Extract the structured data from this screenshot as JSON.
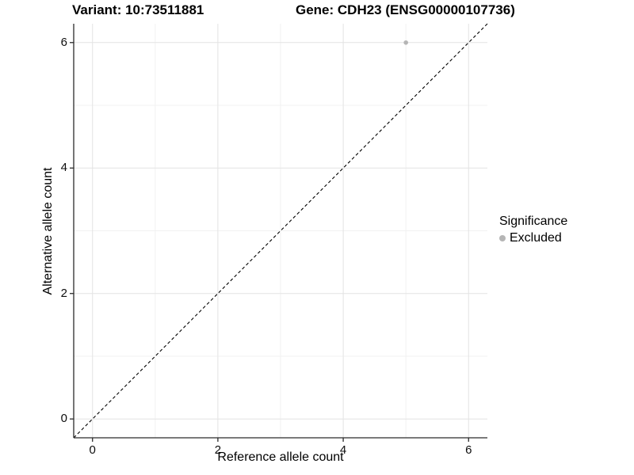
{
  "header": {
    "variant_title": "Variant: 10:73511881",
    "gene_title": "Gene: CDH23 (ENSG00000107736)"
  },
  "legend": {
    "title": "Significance",
    "items": [
      {
        "label": "Excluded",
        "color": "#b5b5b5"
      }
    ]
  },
  "chart_data": {
    "type": "scatter",
    "title_left": "Variant: 10:73511881",
    "title_right": "Gene: CDH23 (ENSG00000107736)",
    "xlabel": "Reference allele count",
    "ylabel": "Alternative allele count",
    "xlim": [
      -0.3,
      6.3
    ],
    "ylim": [
      -0.3,
      6.3
    ],
    "x_ticks": [
      0,
      2,
      4,
      6
    ],
    "y_ticks": [
      0,
      2,
      4,
      6
    ],
    "x_minor_ticks": [
      1,
      3,
      5
    ],
    "y_minor_ticks": [
      1,
      3,
      5
    ],
    "grid": true,
    "legend_position": "right",
    "series": [
      {
        "name": "Excluded",
        "color": "#b5b5b5",
        "points": [
          {
            "x": 5,
            "y": 6
          }
        ]
      }
    ],
    "reference_line": {
      "slope": 1,
      "intercept": 0,
      "style": "dashed",
      "color": "#000000"
    }
  },
  "colors": {
    "background": "#ffffff",
    "major_grid": "#e3e3e3",
    "minor_grid": "#f1f1f1",
    "axis_line": "#2b2b2b",
    "tick_mark": "#2b2b2b",
    "text": "#000000"
  }
}
